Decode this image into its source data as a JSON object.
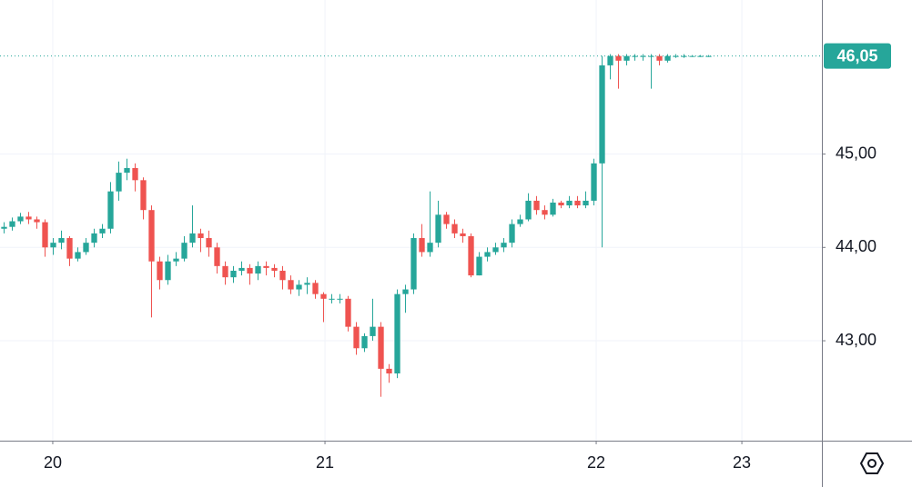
{
  "chart_data": {
    "type": "candlestick",
    "up_color": "#26a69a",
    "down_color": "#ef5350",
    "grid": true,
    "xlim": [
      0,
      100.33
    ],
    "ylim": [
      41.93,
      46.65
    ],
    "xticks": [
      {
        "value": 6.44,
        "label": "20"
      },
      {
        "value": 39.67,
        "label": "21"
      },
      {
        "value": 72.78,
        "label": "22"
      },
      {
        "value": 90.56,
        "label": "23"
      }
    ],
    "yticks": [
      {
        "value": 43,
        "label": "43,00"
      },
      {
        "value": 44,
        "label": "44,00"
      },
      {
        "value": 45,
        "label": "45,00"
      }
    ],
    "last_price": {
      "value": 46.05,
      "label": "46,05"
    },
    "x": [
      0.5,
      1.5,
      2.5,
      3.5,
      4.5,
      5.5,
      6.5,
      7.5,
      8.5,
      9.5,
      10.5,
      11.5,
      12.5,
      13.5,
      14.5,
      15.5,
      16.5,
      17.5,
      18.5,
      19.5,
      20.5,
      21.5,
      22.5,
      23.5,
      24.5,
      25.5,
      26.5,
      27.5,
      28.5,
      29.5,
      30.5,
      31.5,
      32.5,
      33.5,
      34.5,
      35.5,
      36.5,
      37.5,
      38.5,
      39.5,
      40.5,
      41.5,
      42.5,
      43.5,
      44.5,
      45.5,
      46.5,
      47.5,
      48.5,
      49.5,
      50.5,
      51.5,
      52.5,
      53.5,
      54.5,
      55.5,
      56.5,
      57.5,
      58.5,
      59.5,
      60.5,
      61.5,
      62.5,
      63.5,
      64.5,
      65.5,
      66.5,
      67.5,
      68.5,
      69.5,
      70.5,
      71.5,
      72.5,
      73.5,
      74.5,
      75.5,
      76.5,
      77.5,
      78.5,
      79.5,
      80.5,
      81.5,
      82.5,
      83.5,
      84.5,
      85.5,
      86.5
    ],
    "open": [
      44.2,
      44.22,
      44.28,
      44.33,
      44.3,
      44.27,
      44.0,
      44.05,
      44.1,
      43.88,
      43.95,
      44.05,
      44.15,
      44.2,
      44.6,
      44.8,
      44.85,
      44.72,
      44.4,
      43.85,
      43.65,
      43.85,
      43.88,
      44.05,
      44.15,
      44.1,
      44.0,
      43.8,
      43.68,
      43.75,
      43.78,
      43.72,
      43.8,
      43.78,
      43.75,
      43.65,
      43.55,
      43.6,
      43.62,
      43.5,
      43.45,
      43.45,
      43.45,
      43.15,
      42.92,
      43.05,
      43.15,
      42.7,
      42.65,
      43.5,
      43.55,
      44.1,
      43.95,
      44.05,
      44.35,
      44.25,
      44.15,
      44.12,
      43.7,
      43.9,
      43.95,
      44.0,
      44.05,
      44.25,
      44.3,
      44.5,
      44.4,
      44.35,
      44.48,
      44.45,
      44.5,
      44.45,
      44.5,
      44.9,
      45.95,
      46.05,
      46.0,
      46.05,
      46.05,
      46.05,
      46.05,
      46.0,
      46.05,
      46.05,
      46.05,
      46.05,
      46.05
    ],
    "high": [
      44.27,
      44.32,
      44.37,
      44.38,
      44.33,
      44.3,
      44.1,
      44.18,
      44.12,
      44.0,
      44.1,
      44.2,
      44.25,
      44.7,
      44.92,
      44.95,
      44.9,
      44.75,
      44.45,
      43.9,
      43.92,
      43.95,
      44.12,
      44.45,
      44.2,
      44.18,
      44.05,
      43.85,
      43.8,
      43.85,
      43.82,
      43.85,
      43.85,
      43.82,
      43.8,
      43.7,
      43.65,
      43.68,
      43.65,
      43.52,
      43.5,
      43.5,
      43.48,
      43.2,
      43.08,
      43.45,
      43.2,
      42.75,
      43.55,
      43.6,
      44.15,
      44.25,
      44.6,
      44.5,
      44.38,
      44.3,
      44.2,
      44.15,
      43.95,
      44.0,
      44.05,
      44.1,
      44.3,
      44.35,
      44.58,
      44.55,
      44.45,
      44.52,
      44.5,
      44.55,
      44.55,
      44.6,
      44.95,
      46.05,
      46.07,
      46.07,
      46.07,
      46.07,
      46.07,
      46.07,
      46.07,
      46.07,
      46.07,
      46.07,
      46.06,
      46.06,
      46.06
    ],
    "low": [
      44.15,
      44.18,
      44.25,
      44.25,
      44.2,
      43.9,
      43.92,
      43.98,
      43.8,
      43.85,
      43.92,
      44.0,
      44.1,
      44.15,
      44.5,
      44.72,
      44.6,
      44.3,
      43.25,
      43.55,
      43.6,
      43.8,
      43.85,
      44.0,
      43.95,
      43.9,
      43.72,
      43.6,
      43.62,
      43.7,
      43.6,
      43.65,
      43.7,
      43.68,
      43.55,
      43.5,
      43.48,
      43.5,
      43.45,
      43.2,
      43.4,
      43.4,
      43.1,
      42.85,
      42.88,
      43.0,
      42.4,
      42.55,
      42.6,
      43.3,
      43.5,
      43.9,
      43.9,
      44.0,
      44.2,
      44.1,
      44.05,
      43.68,
      43.7,
      43.85,
      43.92,
      43.95,
      44.0,
      44.22,
      44.28,
      44.35,
      44.3,
      44.33,
      44.42,
      44.42,
      44.42,
      44.42,
      44.45,
      44.0,
      45.8,
      45.7,
      45.95,
      46.0,
      46.0,
      45.7,
      45.95,
      45.98,
      46.03,
      46.03,
      46.04,
      46.04,
      46.04
    ],
    "close": [
      44.22,
      44.28,
      44.33,
      44.3,
      44.27,
      44.0,
      44.05,
      44.1,
      43.88,
      43.95,
      44.05,
      44.15,
      44.2,
      44.6,
      44.8,
      44.85,
      44.72,
      44.4,
      43.85,
      43.65,
      43.85,
      43.88,
      44.05,
      44.15,
      44.1,
      44.0,
      43.8,
      43.68,
      43.75,
      43.78,
      43.72,
      43.8,
      43.78,
      43.75,
      43.65,
      43.55,
      43.6,
      43.62,
      43.5,
      43.45,
      43.45,
      43.45,
      43.15,
      42.92,
      43.05,
      43.15,
      42.7,
      42.65,
      43.5,
      43.55,
      44.1,
      43.95,
      44.05,
      44.35,
      44.25,
      44.15,
      44.12,
      43.7,
      43.9,
      43.95,
      44.0,
      44.05,
      44.25,
      44.3,
      44.5,
      44.4,
      44.35,
      44.48,
      44.45,
      44.5,
      44.45,
      44.5,
      44.9,
      45.95,
      46.05,
      46.0,
      46.05,
      46.05,
      46.05,
      46.05,
      46.0,
      46.05,
      46.05,
      46.05,
      46.05,
      46.05,
      46.05
    ]
  }
}
